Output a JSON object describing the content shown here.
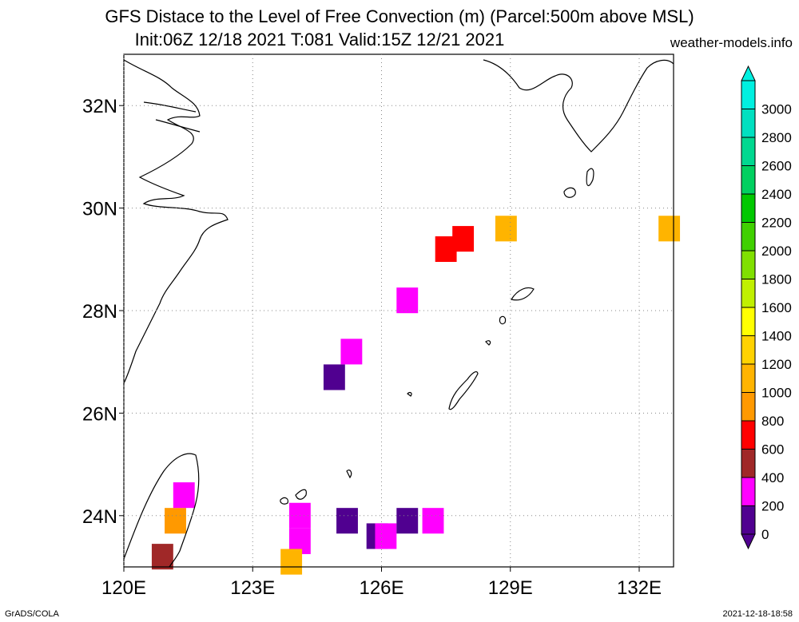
{
  "header": {
    "title": "GFS Distace to the Level of Free Convection (m) (Parcel:500m above MSL)",
    "subtitle": "Init:06Z 12/18 2021 T:081 Valid:15Z 12/21 2021",
    "site": "weather-models.info"
  },
  "footer": {
    "left": "GrADS/COLA",
    "right": "2021-12-18-18:58"
  },
  "map": {
    "lon_range": [
      120,
      132.8
    ],
    "lat_range": [
      23,
      33
    ],
    "lon_ticks": [
      {
        "value": 120,
        "label": "120E"
      },
      {
        "value": 123,
        "label": "123E"
      },
      {
        "value": 126,
        "label": "126E"
      },
      {
        "value": 129,
        "label": "129E"
      },
      {
        "value": 132,
        "label": "132E"
      }
    ],
    "lat_ticks": [
      {
        "value": 24,
        "label": "24N"
      },
      {
        "value": 26,
        "label": "26N"
      },
      {
        "value": 28,
        "label": "28N"
      },
      {
        "value": 30,
        "label": "30N"
      },
      {
        "value": 32,
        "label": "32N"
      }
    ],
    "grid": true
  },
  "colorbar": {
    "levels": [
      "0",
      "200",
      "400",
      "600",
      "800",
      "1000",
      "1200",
      "1400",
      "1600",
      "1800",
      "2000",
      "2200",
      "2400",
      "2600",
      "2800",
      "3000"
    ],
    "colors": [
      "#500090",
      "#ff00ff",
      "#a02828",
      "#ff0000",
      "#ff9900",
      "#ffb400",
      "#ffd200",
      "#ffff00",
      "#c0f000",
      "#80e000",
      "#40d000",
      "#00c800",
      "#00d060",
      "#00d890",
      "#00e0c0",
      "#00f0e0"
    ]
  },
  "chart_data": {
    "type": "heatmap",
    "title": "GFS Distace to the Level of Free Convection (m) (Parcel:500m above MSL)",
    "units": "m",
    "cells": [
      {
        "lon": 125.9,
        "lat": 23.6,
        "value": 100
      },
      {
        "lon": 126.1,
        "lat": 23.6,
        "value": 200
      },
      {
        "lon": 125.2,
        "lat": 23.9,
        "value": 100
      },
      {
        "lon": 126.6,
        "lat": 23.9,
        "value": 100
      },
      {
        "lon": 127.2,
        "lat": 23.9,
        "value": 200
      },
      {
        "lon": 124.1,
        "lat": 24.0,
        "value": 300
      },
      {
        "lon": 124.1,
        "lat": 23.5,
        "value": 200
      },
      {
        "lon": 123.9,
        "lat": 23.1,
        "value": 1000
      },
      {
        "lon": 121.2,
        "lat": 23.9,
        "value": 800
      },
      {
        "lon": 121.4,
        "lat": 24.4,
        "value": 200
      },
      {
        "lon": 120.9,
        "lat": 23.2,
        "value": 400
      },
      {
        "lon": 124.9,
        "lat": 26.7,
        "value": 100
      },
      {
        "lon": 125.3,
        "lat": 27.2,
        "value": 200
      },
      {
        "lon": 126.6,
        "lat": 28.2,
        "value": 300
      },
      {
        "lon": 127.5,
        "lat": 29.2,
        "value": 600
      },
      {
        "lon": 127.9,
        "lat": 29.4,
        "value": 600
      },
      {
        "lon": 128.9,
        "lat": 29.6,
        "value": 1000
      },
      {
        "lon": 132.7,
        "lat": 29.6,
        "value": 1000
      }
    ]
  }
}
